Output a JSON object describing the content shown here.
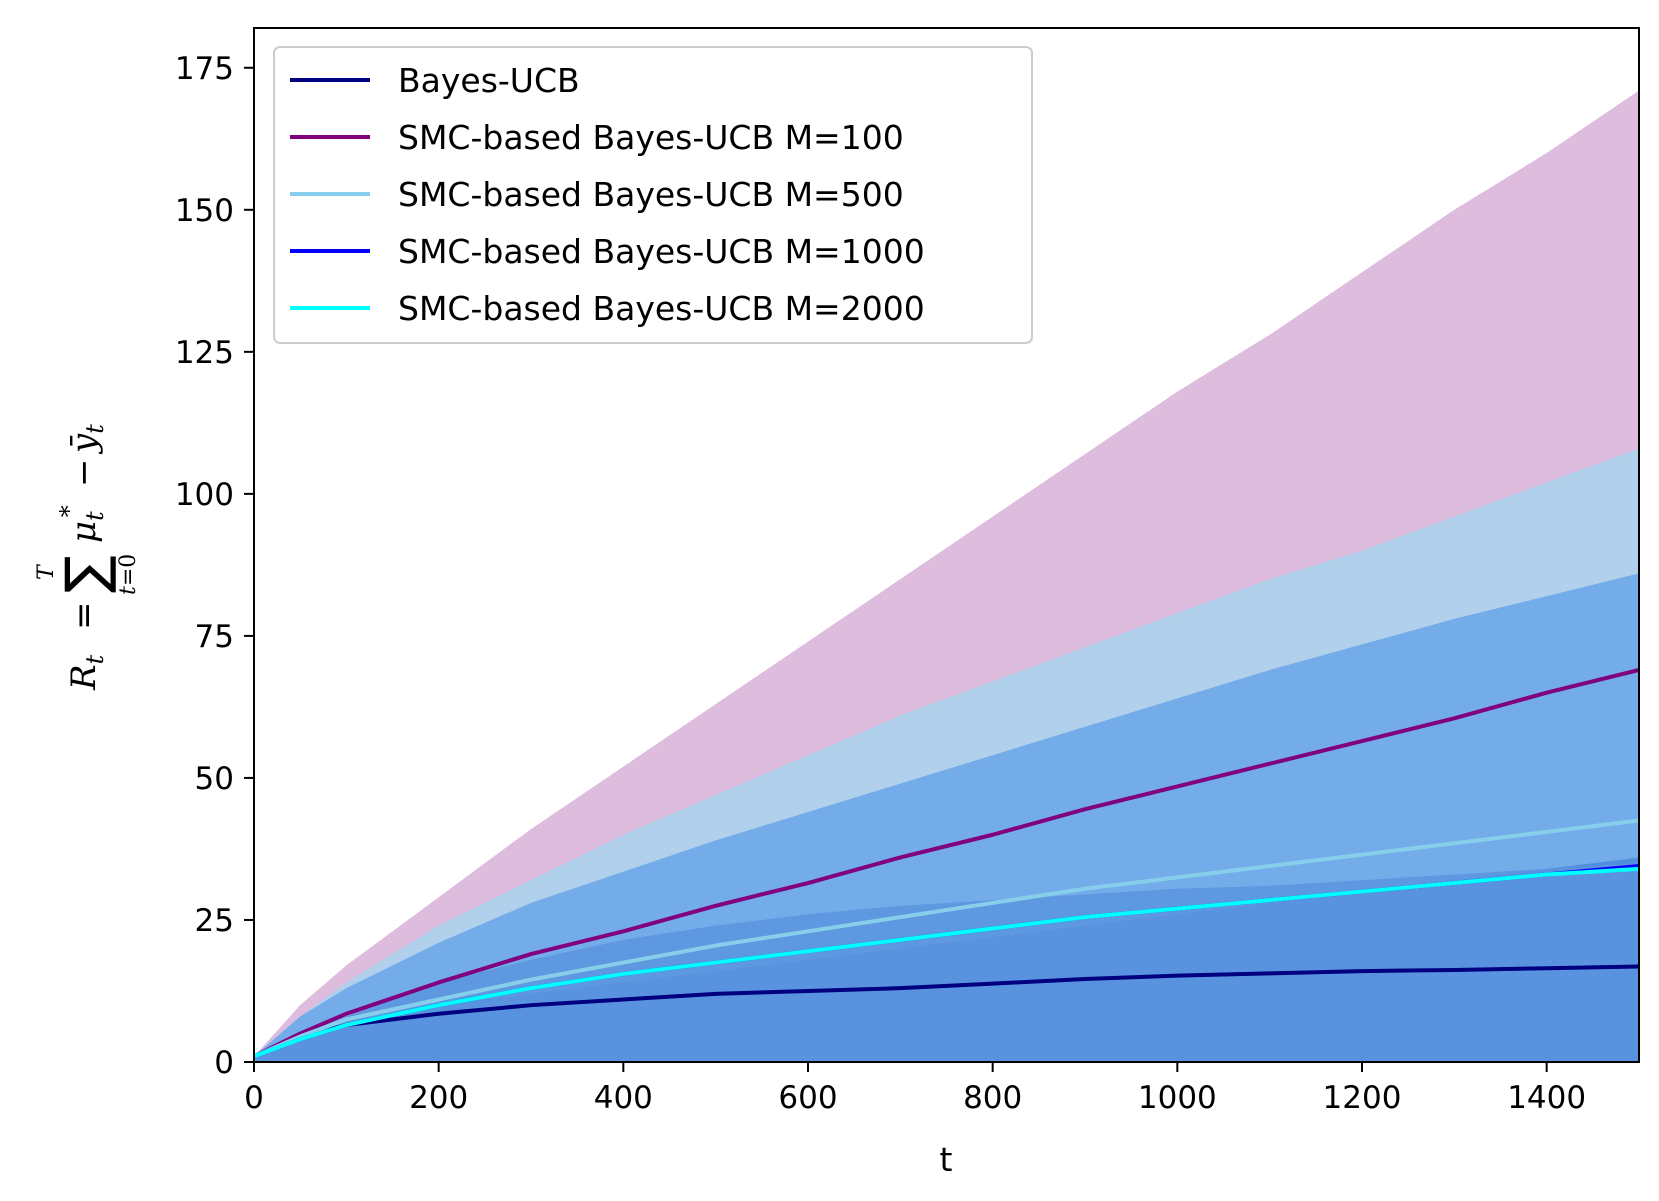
{
  "chart_data": {
    "type": "line",
    "xlabel": "t",
    "ylabel": "R_t = Σ_{t=0}^{T} μ_t^* − ȳ_t",
    "xlim": [
      0,
      1500
    ],
    "ylim": [
      0,
      182
    ],
    "xticks": [
      0,
      200,
      400,
      600,
      800,
      1000,
      1200,
      1400
    ],
    "yticks": [
      0,
      25,
      50,
      75,
      100,
      125,
      150,
      175
    ],
    "grid": false,
    "legend": "top-left",
    "x": [
      0,
      50,
      100,
      200,
      300,
      400,
      500,
      600,
      700,
      800,
      900,
      1000,
      1100,
      1200,
      1300,
      1400,
      1500
    ],
    "series": [
      {
        "name": "Bayes-UCB",
        "color": "#000080",
        "values": [
          1,
          4.5,
          6.5,
          8.5,
          10,
          11,
          12,
          12.5,
          13,
          13.8,
          14.6,
          15.2,
          15.6,
          16,
          16.2,
          16.5,
          16.8
        ],
        "band_color": "#4a88dd",
        "band_upper": [
          1,
          4.8,
          7,
          10,
          12,
          14,
          16,
          18,
          20,
          22,
          24,
          26,
          28,
          30,
          32,
          34,
          36
        ],
        "band_lower": [
          0,
          0,
          0,
          0,
          0,
          0,
          0,
          0,
          0,
          0,
          0,
          0,
          0,
          0,
          0,
          0,
          0
        ]
      },
      {
        "name": "SMC-based Bayes-UCB M=100",
        "color": "#800080",
        "values": [
          1,
          5,
          8.5,
          14,
          19,
          23,
          27.5,
          31.5,
          36,
          40,
          44.5,
          48.5,
          52.5,
          56.5,
          60.5,
          65,
          69
        ],
        "band_color": "#d8b0d8",
        "band_upper": [
          1,
          10,
          17,
          29,
          41,
          52,
          63,
          74,
          85,
          96,
          107,
          118,
          128,
          139,
          150,
          160,
          171
        ],
        "band_lower": [
          0,
          0,
          0,
          0,
          0,
          0,
          0,
          0,
          0,
          0,
          0,
          0,
          0,
          0,
          0,
          0,
          0
        ]
      },
      {
        "name": "SMC-based Bayes-UCB M=500",
        "color": "#87ceeb",
        "values": [
          1,
          4.5,
          7.5,
          11,
          14.5,
          17.5,
          20.5,
          23,
          25.5,
          28,
          30.5,
          32.5,
          34.5,
          36.5,
          38.5,
          40.5,
          42.5
        ],
        "band_color": "#a8d4ee",
        "band_upper": [
          1,
          8,
          14,
          24,
          32,
          40,
          47,
          54,
          61,
          67,
          73,
          79,
          85,
          90,
          96,
          102,
          108
        ],
        "band_lower": [
          0,
          0,
          0.5,
          1,
          1,
          1,
          1.5,
          1,
          1,
          1,
          1,
          0.5,
          0.5,
          0,
          0,
          0,
          0
        ]
      },
      {
        "name": "SMC-based Bayes-UCB M=1000",
        "color": "#0000ff",
        "values": [
          1,
          4,
          6.5,
          10,
          13,
          15.5,
          17.5,
          19.5,
          21.5,
          23.5,
          25.5,
          27,
          28.5,
          30,
          31.5,
          33,
          34.5
        ],
        "band_color": "#6aa6ea",
        "band_upper": [
          1,
          8,
          13,
          21,
          28,
          33.5,
          39,
          44,
          49,
          54,
          59,
          64,
          69,
          73.5,
          78,
          82,
          86
        ],
        "band_lower": [
          0,
          0,
          0,
          0,
          0,
          0,
          0,
          0,
          0,
          0,
          0,
          0,
          0,
          0,
          0,
          0,
          0
        ]
      },
      {
        "name": "SMC-based Bayes-UCB M=2000",
        "color": "#00ffff",
        "values": [
          1,
          4,
          6.5,
          10,
          13,
          15.5,
          17.5,
          19.5,
          21.5,
          23.5,
          25.5,
          27,
          28.5,
          30,
          31.5,
          33,
          34
        ],
        "band_color": "#5b94df",
        "band_upper": [
          1,
          5,
          8,
          14,
          18,
          21.5,
          24,
          26,
          27.5,
          28.5,
          29.5,
          30.5,
          31,
          32,
          33,
          34,
          35
        ],
        "band_lower": [
          0,
          0,
          0,
          0,
          0,
          0,
          0,
          0,
          0,
          0,
          0,
          0,
          0,
          0,
          0,
          0,
          0
        ]
      }
    ]
  }
}
